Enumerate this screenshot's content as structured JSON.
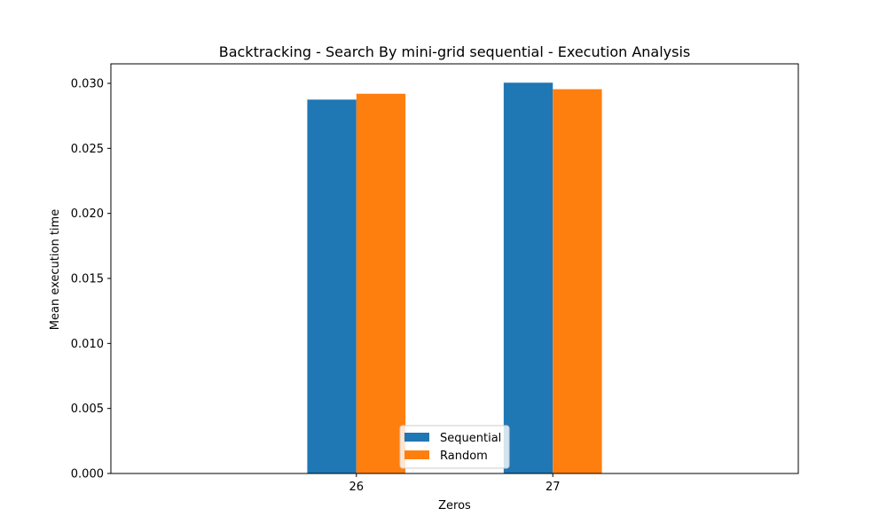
{
  "chart_data": {
    "type": "bar",
    "title": "Backtracking - Search By mini-grid sequential - Execution Analysis",
    "xlabel": "Zeros",
    "ylabel": "Mean execution time",
    "categories": [
      "26",
      "27"
    ],
    "series": [
      {
        "name": "Sequential",
        "color": "#1f77b4",
        "values": [
          0.02875,
          0.03005
        ]
      },
      {
        "name": "Random",
        "color": "#ff7f0e",
        "values": [
          0.0292,
          0.02955
        ]
      }
    ],
    "ylim": [
      0,
      0.0315
    ],
    "yticks": [
      "0.000",
      "0.005",
      "0.010",
      "0.015",
      "0.020",
      "0.025",
      "0.030"
    ],
    "grid": false,
    "legend_position": "bottom-center"
  }
}
